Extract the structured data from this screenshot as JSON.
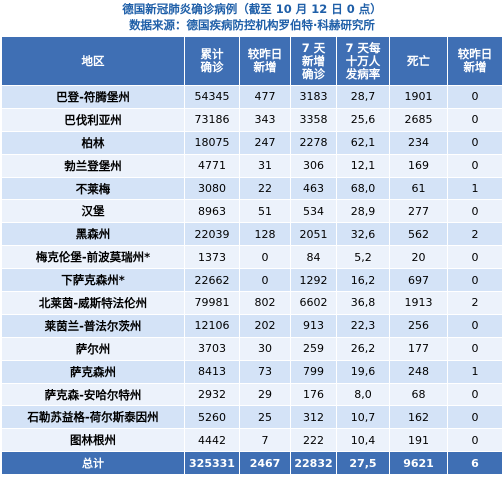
{
  "title": "德国新冠肺炎确诊病例（截至 10 月 12 日 0 点）",
  "source": "数据来源：德国疾病防控机构罗伯特·科赫研究所",
  "headers": {
    "region": "地区",
    "total": [
      "累计",
      "确诊"
    ],
    "new": [
      "较昨日",
      "新增"
    ],
    "new7": [
      "7 天",
      "新增",
      "确诊"
    ],
    "inc7": [
      "7 天每",
      "十万人",
      "发病率"
    ],
    "deaths": "死亡",
    "new_deaths": [
      "较昨日",
      "新增"
    ]
  },
  "rows": [
    {
      "region": "巴登-符腾堡州",
      "total": "54345",
      "new": "477",
      "new7": "3183",
      "inc7": "28,7",
      "deaths": "1901",
      "new_deaths": "0"
    },
    {
      "region": "巴伐利亚州",
      "total": "73186",
      "new": "343",
      "new7": "3358",
      "inc7": "25,6",
      "deaths": "2685",
      "new_deaths": "0"
    },
    {
      "region": "柏林",
      "total": "18075",
      "new": "247",
      "new7": "2278",
      "inc7": "62,1",
      "deaths": "234",
      "new_deaths": "0"
    },
    {
      "region": "勃兰登堡州",
      "total": "4771",
      "new": "31",
      "new7": "306",
      "inc7": "12,1",
      "deaths": "169",
      "new_deaths": "0"
    },
    {
      "region": "不莱梅",
      "total": "3080",
      "new": "22",
      "new7": "463",
      "inc7": "68,0",
      "deaths": "61",
      "new_deaths": "1"
    },
    {
      "region": "汉堡",
      "total": "8963",
      "new": "51",
      "new7": "534",
      "inc7": "28,9",
      "deaths": "277",
      "new_deaths": "0"
    },
    {
      "region": "黑森州",
      "total": "22039",
      "new": "128",
      "new7": "2051",
      "inc7": "32,6",
      "deaths": "562",
      "new_deaths": "2"
    },
    {
      "region": "梅克伦堡-前波莫瑞州*",
      "total": "1373",
      "new": "0",
      "new7": "84",
      "inc7": "5,2",
      "deaths": "20",
      "new_deaths": "0"
    },
    {
      "region": "下萨克森州*",
      "total": "22662",
      "new": "0",
      "new7": "1292",
      "inc7": "16,2",
      "deaths": "697",
      "new_deaths": "0"
    },
    {
      "region": "北莱茵-威斯特法伦州",
      "total": "79981",
      "new": "802",
      "new7": "6602",
      "inc7": "36,8",
      "deaths": "1913",
      "new_deaths": "2"
    },
    {
      "region": "莱茵兰-普法尔茨州",
      "total": "12106",
      "new": "202",
      "new7": "913",
      "inc7": "22,3",
      "deaths": "256",
      "new_deaths": "0"
    },
    {
      "region": "萨尔州",
      "total": "3703",
      "new": "30",
      "new7": "259",
      "inc7": "26,2",
      "deaths": "177",
      "new_deaths": "0"
    },
    {
      "region": "萨克森州",
      "total": "8413",
      "new": "73",
      "new7": "799",
      "inc7": "19,6",
      "deaths": "248",
      "new_deaths": "1"
    },
    {
      "region": "萨克森-安哈尔特州",
      "total": "2932",
      "new": "29",
      "new7": "176",
      "inc7": "8,0",
      "deaths": "68",
      "new_deaths": "0"
    },
    {
      "region": "石勒苏益格-荷尔斯泰因州",
      "total": "5260",
      "new": "25",
      "new7": "312",
      "inc7": "10,7",
      "deaths": "162",
      "new_deaths": "0"
    },
    {
      "region": "图林根州",
      "total": "4442",
      "new": "7",
      "new7": "222",
      "inc7": "10,4",
      "deaths": "191",
      "new_deaths": "0"
    }
  ],
  "total_row": {
    "region": "总计",
    "total": "325331",
    "new": "2467",
    "new7": "22832",
    "inc7": "27,5",
    "deaths": "9621",
    "new_deaths": "6"
  }
}
